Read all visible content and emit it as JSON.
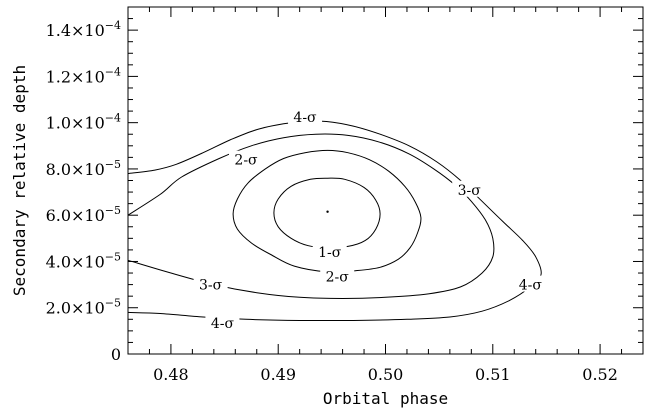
{
  "chart_data": {
    "type": "contour",
    "title": "",
    "xlabel": "Orbital phase",
    "ylabel": "Secondary relative depth",
    "xlim": [
      0.476,
      0.524
    ],
    "ylim": [
      0,
      0.00015
    ],
    "x_ticks": [
      {
        "value": 0.48,
        "label": "0.48"
      },
      {
        "value": 0.49,
        "label": "0.49"
      },
      {
        "value": 0.5,
        "label": "0.50"
      },
      {
        "value": 0.51,
        "label": "0.51"
      },
      {
        "value": 0.52,
        "label": "0.52"
      }
    ],
    "y_ticks": [
      {
        "value": 0,
        "label": "0",
        "mant": "0",
        "exp": ""
      },
      {
        "value": 2e-05,
        "label": "2.0×10⁻⁵",
        "mant": "2.0×10",
        "exp": "−5"
      },
      {
        "value": 4e-05,
        "label": "4.0×10⁻⁵",
        "mant": "4.0×10",
        "exp": "−5"
      },
      {
        "value": 6e-05,
        "label": "6.0×10⁻⁵",
        "mant": "6.0×10",
        "exp": "−5"
      },
      {
        "value": 8e-05,
        "label": "8.0×10⁻⁵",
        "mant": "8.0×10",
        "exp": "−5"
      },
      {
        "value": 0.0001,
        "label": "1.0×10⁻⁴",
        "mant": "1.0×10",
        "exp": "−4"
      },
      {
        "value": 0.00012,
        "label": "1.2×10⁻⁴",
        "mant": "1.2×10",
        "exp": "−4"
      },
      {
        "value": 0.00014,
        "label": "1.4×10⁻⁴",
        "mant": "1.4×10",
        "exp": "−4"
      }
    ],
    "best_fit": {
      "x": 0.4946,
      "y": 6.15e-05
    },
    "contours": [
      {
        "name": "1-σ",
        "closed": true,
        "points": [
          [
            0.4946,
            4.6e-05
          ],
          [
            0.4965,
            4.65e-05
          ],
          [
            0.4981,
            4.9e-05
          ],
          [
            0.4991,
            5.4e-05
          ],
          [
            0.4995,
            6.05e-05
          ],
          [
            0.4991,
            6.65e-05
          ],
          [
            0.498,
            7.2e-05
          ],
          [
            0.4962,
            7.55e-05
          ],
          [
            0.4946,
            7.6e-05
          ],
          [
            0.493,
            7.55e-05
          ],
          [
            0.4912,
            7.25e-05
          ],
          [
            0.49,
            6.7e-05
          ],
          [
            0.4896,
            6.1e-05
          ],
          [
            0.49,
            5.5e-05
          ],
          [
            0.4912,
            5e-05
          ],
          [
            0.4928,
            4.68e-05
          ]
        ],
        "label_at": [
          0.4948,
          4.4e-05
        ]
      },
      {
        "name": "2-σ",
        "closed": true,
        "points": [
          [
            0.4946,
            3.55e-05
          ],
          [
            0.4972,
            3.6e-05
          ],
          [
            0.4995,
            3.75e-05
          ],
          [
            0.5012,
            4.1e-05
          ],
          [
            0.5023,
            4.6e-05
          ],
          [
            0.503,
            5.25e-05
          ],
          [
            0.5033,
            5.9e-05
          ],
          [
            0.5028,
            6.55e-05
          ],
          [
            0.5018,
            7.25e-05
          ],
          [
            0.5003,
            7.9e-05
          ],
          [
            0.4985,
            8.4e-05
          ],
          [
            0.4965,
            8.7e-05
          ],
          [
            0.4946,
            8.8e-05
          ],
          [
            0.4925,
            8.7e-05
          ],
          [
            0.4905,
            8.45e-05
          ],
          [
            0.4888,
            8e-05
          ],
          [
            0.4872,
            7.4e-05
          ],
          [
            0.4862,
            6.7e-05
          ],
          [
            0.4858,
            6.05e-05
          ],
          [
            0.4862,
            5.4e-05
          ],
          [
            0.4875,
            4.8e-05
          ],
          [
            0.4893,
            4.3e-05
          ],
          [
            0.4915,
            3.8e-05
          ]
        ],
        "label_at": [
          0.4955,
          3.35e-05
        ]
      },
      {
        "name": "3-σ",
        "closed": false,
        "points": [
          [
            0.476,
            4.05e-05
          ],
          [
            0.48,
            3.5e-05
          ],
          [
            0.484,
            3e-05
          ],
          [
            0.488,
            2.65e-05
          ],
          [
            0.492,
            2.45e-05
          ],
          [
            0.496,
            2.4e-05
          ],
          [
            0.5,
            2.45e-05
          ],
          [
            0.504,
            2.6e-05
          ],
          [
            0.507,
            2.9e-05
          ],
          [
            0.509,
            3.5e-05
          ],
          [
            0.51,
            4.2e-05
          ],
          [
            0.51,
            5e-05
          ],
          [
            0.5093,
            5.8e-05
          ],
          [
            0.508,
            6.6e-05
          ],
          [
            0.5065,
            7.3e-05
          ],
          [
            0.5045,
            8e-05
          ],
          [
            0.5022,
            8.65e-05
          ],
          [
            0.4995,
            9.15e-05
          ],
          [
            0.4965,
            9.45e-05
          ],
          [
            0.4935,
            9.5e-05
          ],
          [
            0.4905,
            9.35e-05
          ],
          [
            0.4875,
            9e-05
          ],
          [
            0.4845,
            8.45e-05
          ],
          [
            0.481,
            7.65e-05
          ],
          [
            0.479,
            6.9e-05
          ],
          [
            0.476,
            6e-05
          ]
        ],
        "label_at": [
          0.4837,
          3e-05
        ]
      },
      {
        "name": "4-σ",
        "closed": false,
        "points": [
          [
            0.476,
            1.8e-05
          ],
          [
            0.479,
            1.75e-05
          ],
          [
            0.483,
            1.6e-05
          ],
          [
            0.487,
            1.5e-05
          ],
          [
            0.492,
            1.45e-05
          ],
          [
            0.497,
            1.45e-05
          ],
          [
            0.502,
            1.5e-05
          ],
          [
            0.506,
            1.6e-05
          ],
          [
            0.509,
            1.85e-05
          ],
          [
            0.5115,
            2.3e-05
          ],
          [
            0.5135,
            2.9e-05
          ],
          [
            0.5145,
            3.45e-05
          ],
          [
            0.514,
            4.2e-05
          ],
          [
            0.5128,
            4.9e-05
          ],
          [
            0.511,
            5.7e-05
          ],
          [
            0.509,
            6.6e-05
          ],
          [
            0.507,
            7.5e-05
          ],
          [
            0.5048,
            8.3e-05
          ],
          [
            0.5022,
            9e-05
          ],
          [
            0.4995,
            9.5e-05
          ],
          [
            0.497,
            9.85e-05
          ],
          [
            0.4945,
            0.0001005
          ],
          [
            0.4925,
            0.0001005
          ],
          [
            0.4905,
            9.95e-05
          ],
          [
            0.488,
            9.7e-05
          ],
          [
            0.4855,
            9.25e-05
          ],
          [
            0.483,
            8.7e-05
          ],
          [
            0.4805,
            8.2e-05
          ],
          [
            0.4785,
            7.95e-05
          ],
          [
            0.476,
            7.8e-05
          ]
        ],
        "label_at": [
          0.4848,
          1.35e-05
        ]
      }
    ],
    "extra_labels": [
      {
        "text": "4-σ",
        "x": 0.4925,
        "y": 0.0001025
      },
      {
        "text": "2-σ",
        "x": 0.487,
        "y": 8.4e-05
      },
      {
        "text": "3-σ",
        "x": 0.5078,
        "y": 7.1e-05
      },
      {
        "text": "4-σ",
        "x": 0.5135,
        "y": 3e-05
      }
    ]
  }
}
